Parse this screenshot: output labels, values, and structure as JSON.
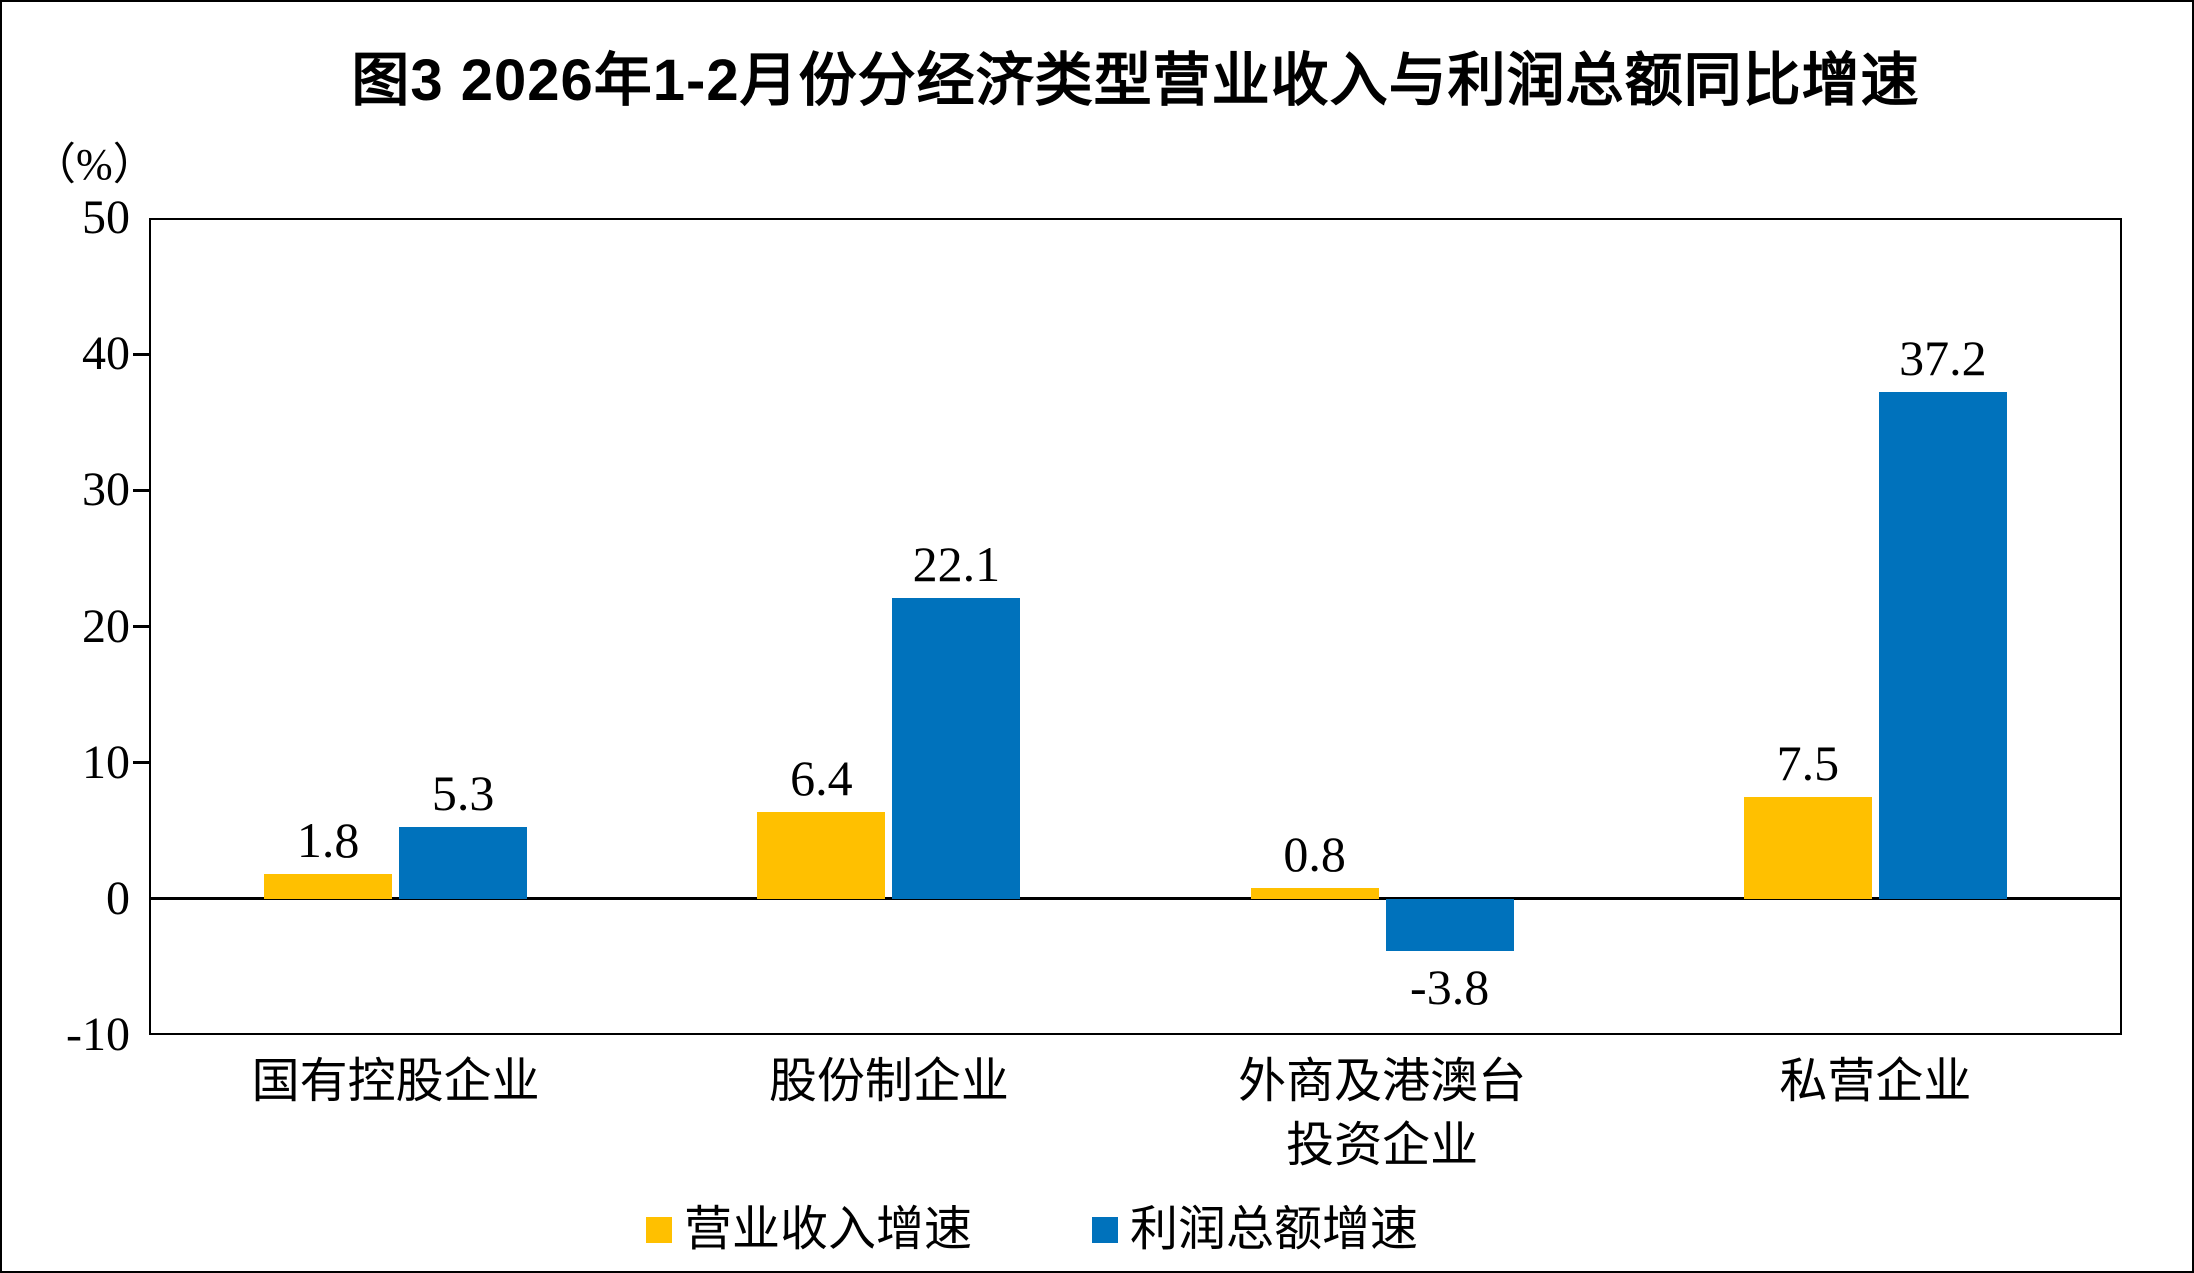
{
  "figure": {
    "unit_label": "（%）"
  },
  "chart_data": {
    "type": "bar",
    "title": "图3 2026年1-2月份分经济类型营业收入与利润总额同比增速",
    "ylabel": "（%）",
    "xlabel": "",
    "ylim": [
      -10,
      50
    ],
    "ytick_interval": 10,
    "yticks": [
      50,
      40,
      30,
      20,
      10,
      0,
      -10
    ],
    "yticks_with_marks": [
      40,
      30,
      20,
      10
    ],
    "grid": false,
    "legend_position": "bottom",
    "categories": [
      "国有控股企业",
      "股份制企业",
      "外商及港澳台\n投资企业",
      "私营企业"
    ],
    "series": [
      {
        "name": "营业收入增速",
        "color": "#FFC000",
        "values": [
          1.8,
          6.4,
          0.8,
          7.5
        ]
      },
      {
        "name": "利润总额增速",
        "color": "#0072BC",
        "values": [
          5.3,
          22.1,
          -3.8,
          37.2
        ]
      }
    ],
    "data_labels": {
      "营业收入增速": [
        "1.8",
        "6.4",
        "0.8",
        "7.5"
      ],
      "利润总额增速": [
        "5.3",
        "22.1",
        "-3.8",
        "37.2"
      ]
    }
  },
  "colors": {
    "revenue_series": "#FFC000",
    "profit_series": "#0072BC",
    "axis": "#000000",
    "background": "#FFFFFF"
  }
}
